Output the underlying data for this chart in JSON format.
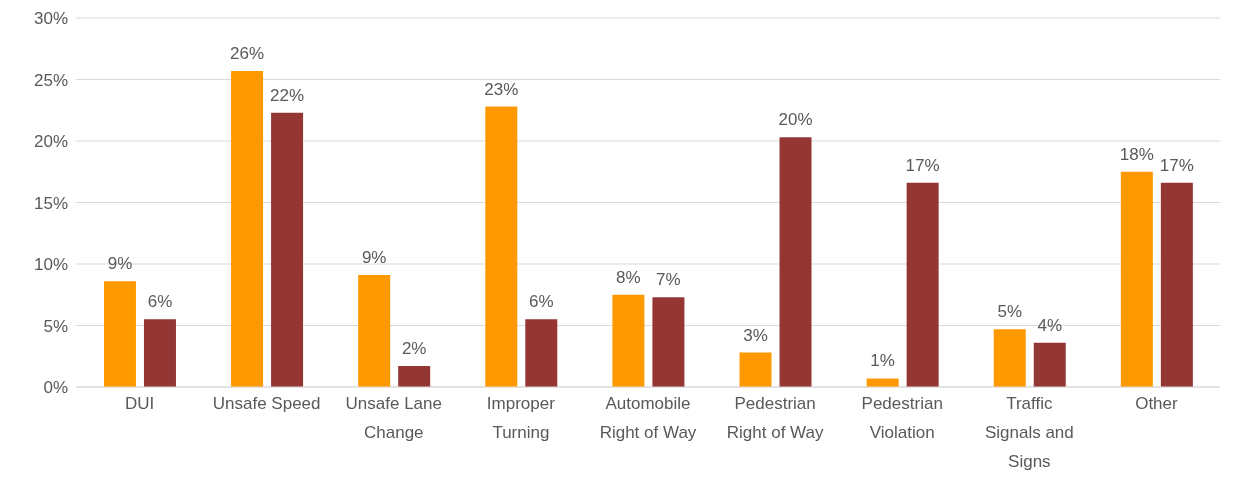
{
  "chart_data": {
    "type": "bar",
    "categories": [
      "DUI",
      "Unsafe Speed",
      "Unsafe Lane Change",
      "Improper Turning",
      "Automobile Right of Way",
      "Pedestrian Right of Way",
      "Pedestrian Violation",
      "Traffic Signals and Signs",
      "Other"
    ],
    "series": [
      {
        "color": "#ff9900",
        "values": [
          8.6,
          25.7,
          9.1,
          22.8,
          7.5,
          2.8,
          0.7,
          4.7,
          17.5
        ],
        "value_labels": [
          "9%",
          "26%",
          "9%",
          "23%",
          "8%",
          "3%",
          "1%",
          "5%",
          "18%"
        ]
      },
      {
        "color": "#943634",
        "values": [
          5.5,
          22.3,
          1.7,
          5.5,
          7.3,
          20.3,
          16.6,
          3.6,
          16.6
        ],
        "value_labels": [
          "6%",
          "22%",
          "2%",
          "6%",
          "7%",
          "20%",
          "17%",
          "4%",
          "17%"
        ]
      }
    ],
    "ylim": [
      0,
      30
    ],
    "yticks": [
      {
        "value": 0,
        "label": "0%"
      },
      {
        "value": 5,
        "label": "5%"
      },
      {
        "value": 10,
        "label": "10%"
      },
      {
        "value": 15,
        "label": "15%"
      },
      {
        "value": 20,
        "label": "20%"
      },
      {
        "value": 25,
        "label": "25%"
      },
      {
        "value": 30,
        "label": "30%"
      }
    ],
    "grid": "y",
    "legend": false
  }
}
